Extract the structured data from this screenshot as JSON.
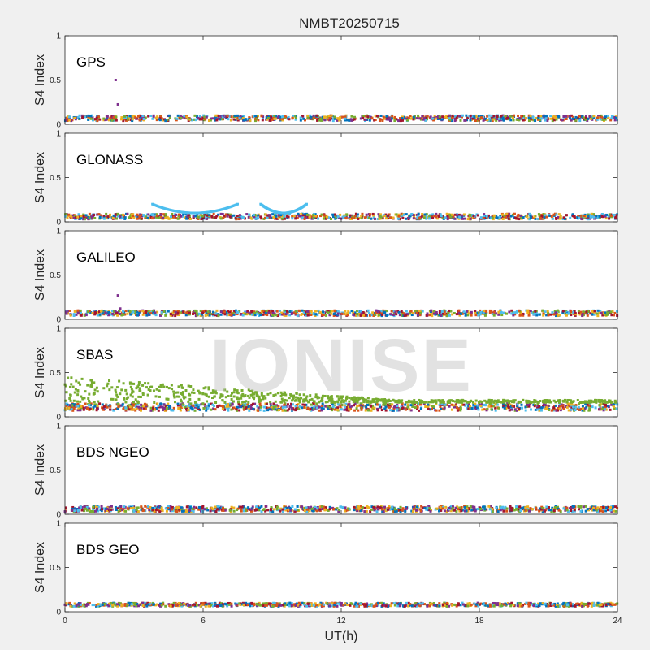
{
  "chart_data": {
    "type": "scatter",
    "title": "NMBT20250715",
    "xlabel": "UT(h)",
    "ylabel": "S4 Index",
    "xlim": [
      0,
      24
    ],
    "ylim": [
      0,
      1
    ],
    "xticks": [
      0,
      6,
      12,
      18,
      24
    ],
    "yticks": [
      0,
      0.5,
      1
    ],
    "grid": false,
    "panels": [
      {
        "label": "GPS",
        "base": 0.07,
        "spread": 0.03
      },
      {
        "label": "GLONASS",
        "base": 0.06,
        "spread": 0.03
      },
      {
        "label": "GALILEO",
        "base": 0.07,
        "spread": 0.03
      },
      {
        "label": "SBAS",
        "base": 0.11,
        "spread": 0.04
      },
      {
        "label": "BDS NGEO",
        "base": 0.06,
        "spread": 0.03
      },
      {
        "label": "BDS GEO",
        "base": 0.08,
        "spread": 0.02
      }
    ],
    "highlights": [
      {
        "panel": "GPS",
        "x": 2.2,
        "y": 0.5
      },
      {
        "panel": "GLONASS",
        "x_range": [
          3.8,
          7.5
        ],
        "y_range": [
          0.1,
          0.2
        ]
      },
      {
        "panel": "GLONASS",
        "x_range": [
          8.5,
          10.5
        ],
        "y_range": [
          0.1,
          0.2
        ]
      },
      {
        "panel": "GALILEO",
        "x": 2.3,
        "y": 0.27
      },
      {
        "panel": "SBAS",
        "series": "green",
        "x_range": [
          0,
          24
        ],
        "y_range": [
          0.45,
          0.18
        ]
      }
    ]
  },
  "watermark": "IONISE",
  "colors": [
    "#0072BD",
    "#D95319",
    "#EDB120",
    "#7E2F8E",
    "#77AC30",
    "#4DBEEE",
    "#A2142F"
  ]
}
